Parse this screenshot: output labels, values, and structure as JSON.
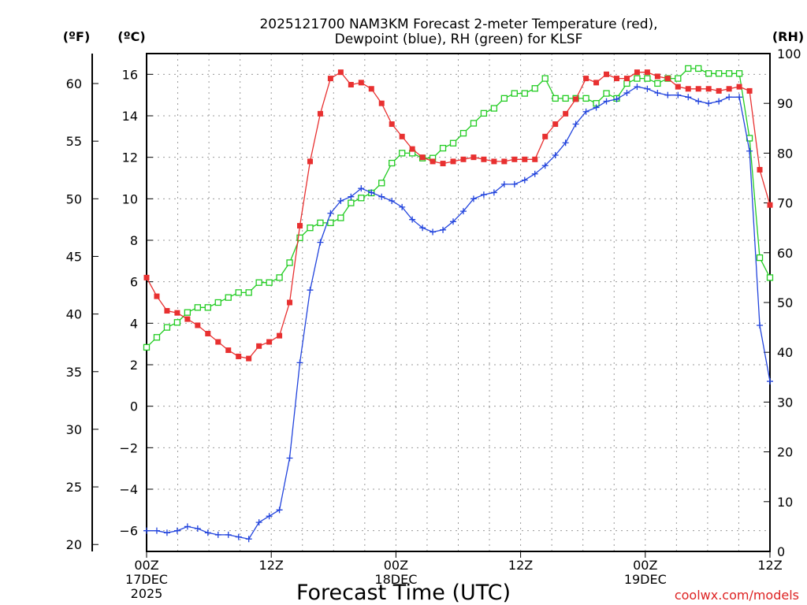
{
  "chart_data": {
    "type": "line",
    "title_line1": "2025121700 NAM3KM Forecast 2-meter Temperature (red),",
    "title_line2": "Dewpoint (blue), RH (green) for KLSF",
    "xlabel": "Forecast Time (UTC)",
    "watermark": "coolwx.com/models",
    "unit_f": "(ºF)",
    "unit_c": "(ºC)",
    "unit_rh": "(RH)",
    "x_range": [
      0,
      60
    ],
    "c_range": [
      -7,
      17
    ],
    "f_range": [
      19.4,
      62.6
    ],
    "rh_range": [
      0,
      100
    ],
    "x_ticks": [
      {
        "x": 0,
        "l1": "00Z",
        "l2": "17DEC",
        "l3": "2025"
      },
      {
        "x": 12,
        "l1": "12Z",
        "l2": "",
        "l3": ""
      },
      {
        "x": 24,
        "l1": "00Z",
        "l2": "18DEC",
        "l3": ""
      },
      {
        "x": 36,
        "l1": "12Z",
        "l2": "",
        "l3": ""
      },
      {
        "x": 48,
        "l1": "00Z",
        "l2": "19DEC",
        "l3": ""
      },
      {
        "x": 60,
        "l1": "12Z",
        "l2": "",
        "l3": ""
      }
    ],
    "c_ticks": [
      "-6",
      "-4",
      "-2",
      "0",
      "2",
      "4",
      "6",
      "8",
      "10",
      "12",
      "14",
      "16"
    ],
    "f_ticks": [
      "20",
      "25",
      "30",
      "35",
      "40",
      "45",
      "50",
      "55",
      "60"
    ],
    "rh_ticks": [
      "0",
      "10",
      "20",
      "30",
      "40",
      "50",
      "60",
      "70",
      "80",
      "90",
      "100"
    ],
    "series": [
      {
        "name": "Temperature",
        "color": "#e83030",
        "marker": "filled-square",
        "values": [
          6.2,
          5.3,
          4.6,
          4.5,
          4.2,
          3.9,
          3.5,
          3.1,
          2.7,
          2.4,
          2.3,
          2.9,
          3.1,
          3.4,
          5.0,
          8.7,
          11.8,
          14.1,
          15.8,
          16.1,
          15.5,
          15.6,
          15.3,
          14.6,
          13.6,
          13.0,
          12.4,
          12.0,
          11.8,
          11.7,
          11.8,
          11.9,
          12.0,
          11.9,
          11.8,
          11.8,
          11.9,
          11.9,
          11.9,
          13.0,
          13.6,
          14.1,
          14.8,
          15.8,
          15.6,
          16.0,
          15.8,
          15.8,
          16.1,
          16.1,
          15.9,
          15.8,
          15.4,
          15.3,
          15.3,
          15.3,
          15.2,
          15.3,
          15.4,
          15.2,
          11.4,
          9.7
        ]
      },
      {
        "name": "Dewpoint",
        "color": "#2244dd",
        "marker": "plus",
        "values": [
          -6.0,
          -6.0,
          -6.1,
          -6.0,
          -5.8,
          -5.9,
          -6.1,
          -6.2,
          -6.2,
          -6.3,
          -6.4,
          -5.6,
          -5.3,
          -5.0,
          -2.5,
          2.1,
          5.6,
          7.9,
          9.3,
          9.9,
          10.1,
          10.5,
          10.3,
          10.1,
          9.9,
          9.6,
          9.0,
          8.6,
          8.4,
          8.5,
          8.9,
          9.4,
          10.0,
          10.2,
          10.3,
          10.7,
          10.7,
          10.9,
          11.2,
          11.6,
          12.1,
          12.7,
          13.6,
          14.2,
          14.4,
          14.7,
          14.8,
          15.1,
          15.4,
          15.3,
          15.1,
          15.0,
          15.0,
          14.9,
          14.7,
          14.6,
          14.7,
          14.9,
          14.9,
          12.3,
          3.9,
          1.2
        ]
      },
      {
        "name": "RH",
        "color": "#22cc22",
        "marker": "open-square",
        "values": [
          41,
          43,
          45,
          46,
          48,
          49,
          49,
          50,
          51,
          52,
          52,
          54,
          54,
          55,
          58,
          63,
          65,
          66,
          66,
          67,
          70,
          71,
          72,
          74,
          78,
          80,
          80,
          79,
          79,
          81,
          82,
          84,
          86,
          88,
          89,
          91,
          92,
          92,
          93,
          95,
          91,
          91,
          91,
          91,
          90,
          92,
          91,
          94,
          95,
          95,
          94,
          95,
          95,
          97,
          97,
          96,
          96,
          96,
          96,
          83,
          59,
          55
        ]
      }
    ]
  }
}
